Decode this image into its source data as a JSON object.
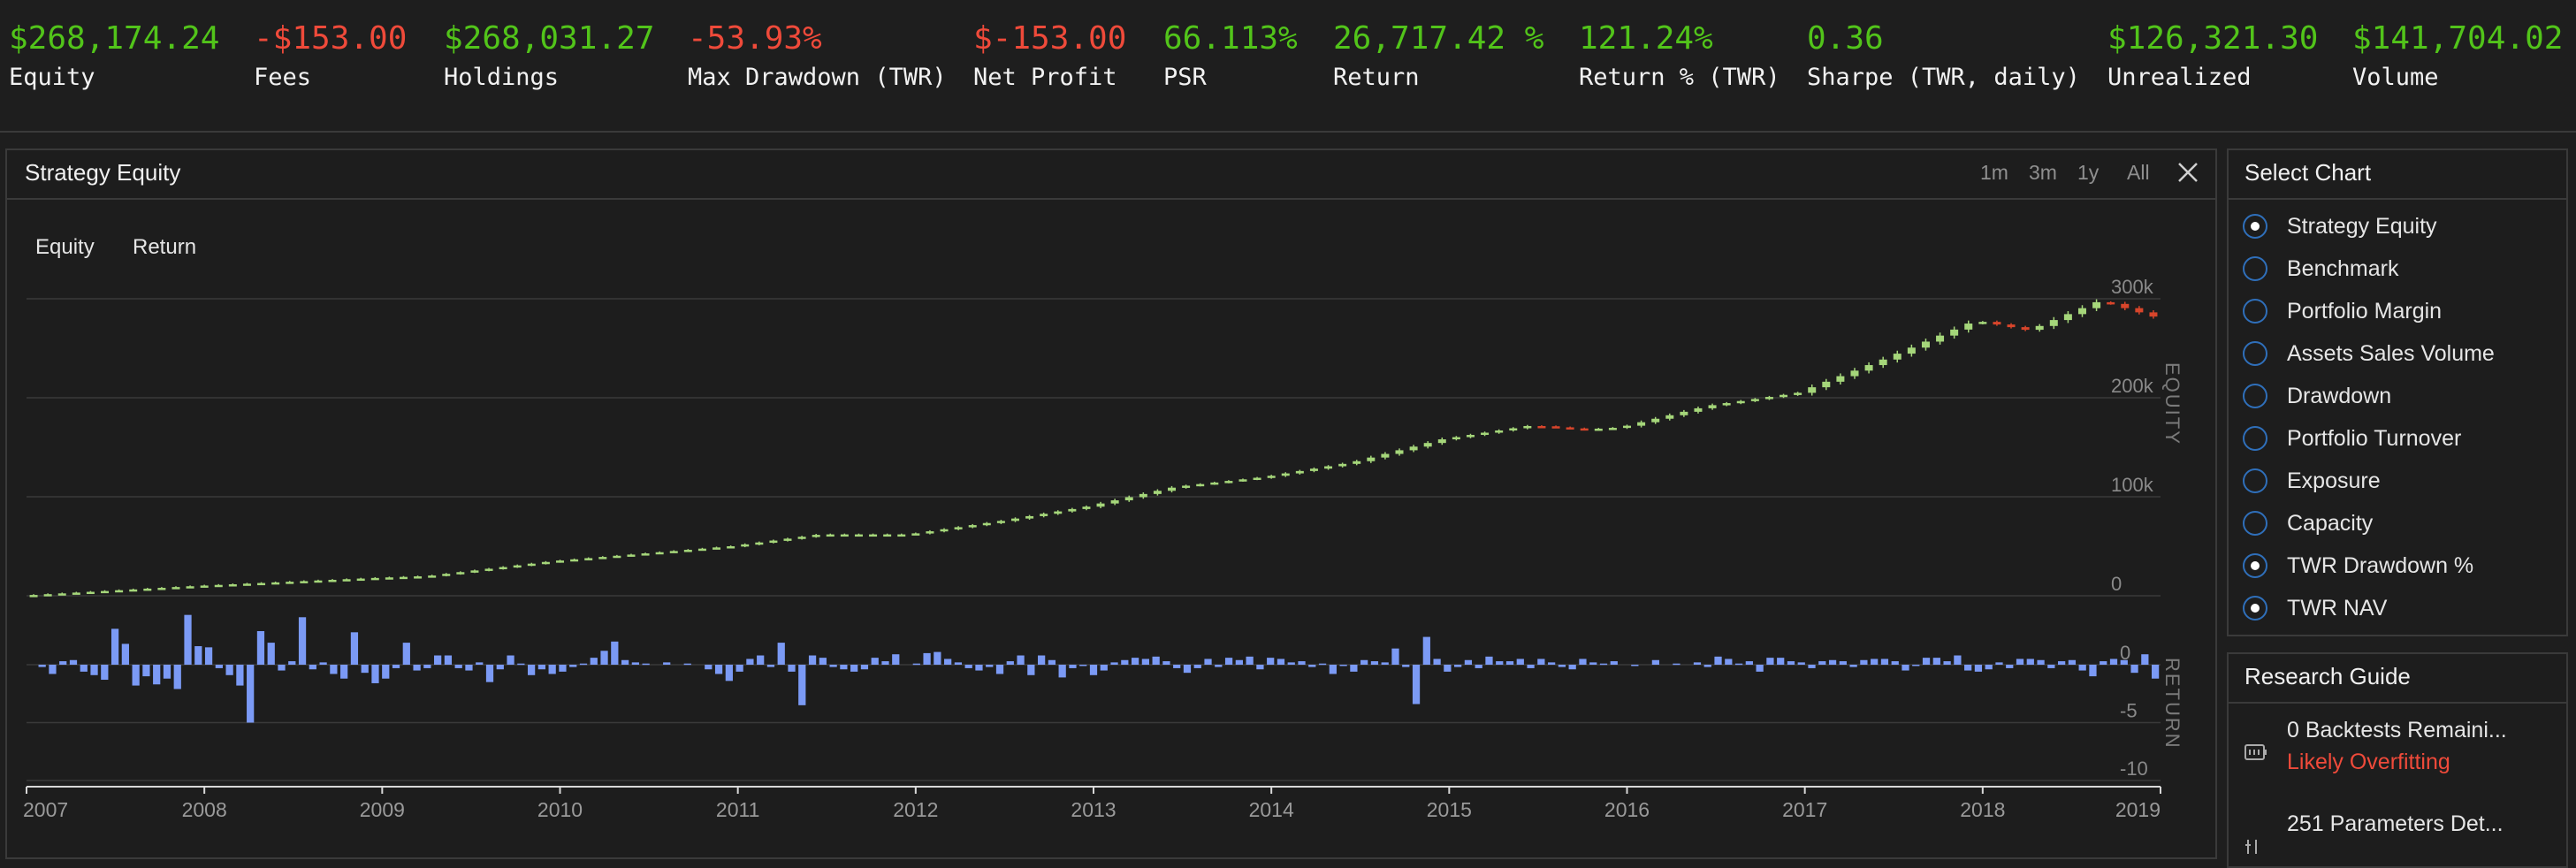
{
  "stats": [
    {
      "value": "$268,174.24",
      "label": "Equity",
      "tone": "pos"
    },
    {
      "value": "-$153.00",
      "label": "Fees",
      "tone": "neg"
    },
    {
      "value": "$268,031.27",
      "label": "Holdings",
      "tone": "pos"
    },
    {
      "value": "-53.93%",
      "label": "Max Drawdown (TWR)",
      "tone": "neg"
    },
    {
      "value": "$-153.00",
      "label": "Net Profit",
      "tone": "neg"
    },
    {
      "value": "66.113%",
      "label": "PSR",
      "tone": "pos"
    },
    {
      "value": "26,717.42 %",
      "label": "Return",
      "tone": "pos"
    },
    {
      "value": "121.24%",
      "label": "Return % (TWR)",
      "tone": "pos"
    },
    {
      "value": "0.36",
      "label": "Sharpe (TWR, daily)",
      "tone": "pos"
    },
    {
      "value": "$126,321.30",
      "label": "Unrealized",
      "tone": "pos"
    },
    {
      "value": "$141,704.02",
      "label": "Volume",
      "tone": "pos"
    }
  ],
  "chart_panel": {
    "title": "Strategy Equity",
    "ranges": [
      "1m",
      "3m",
      "1y",
      "All"
    ],
    "close_icon": "close-icon",
    "series_tabs": [
      "Equity",
      "Return"
    ]
  },
  "select_chart": {
    "title": "Select Chart",
    "options": [
      {
        "label": "Strategy Equity",
        "checked": true
      },
      {
        "label": "Benchmark",
        "checked": false
      },
      {
        "label": "Portfolio Margin",
        "checked": false
      },
      {
        "label": "Assets Sales Volume",
        "checked": false
      },
      {
        "label": "Drawdown",
        "checked": false
      },
      {
        "label": "Portfolio Turnover",
        "checked": false
      },
      {
        "label": "Exposure",
        "checked": false
      },
      {
        "label": "Capacity",
        "checked": false
      },
      {
        "label": "TWR Drawdown %",
        "checked": true
      },
      {
        "label": "TWR NAV",
        "checked": true
      }
    ]
  },
  "research_guide": {
    "title": "Research Guide",
    "items": [
      {
        "icon": "battery-icon",
        "text": "0 Backtests Remaini...",
        "warning": "Likely Overfitting"
      },
      {
        "icon": "parameters-icon",
        "text": "251 Parameters Det...",
        "warning": ""
      }
    ]
  },
  "chart_data": [
    {
      "type": "candlestick",
      "name": "Equity",
      "yaxis_label": "EQUITY",
      "y_ticks": [
        "300k",
        "200k",
        "100k",
        "0"
      ],
      "y_tick_values": [
        300000,
        200000,
        100000,
        0
      ],
      "ylim": [
        0,
        300000
      ],
      "x_ticks": [
        "2007",
        "2008",
        "2009",
        "2010",
        "2011",
        "2012",
        "2013",
        "2014",
        "2015",
        "2016",
        "2017",
        "2018",
        "2019"
      ],
      "xlim": [
        2007.0,
        2019.0
      ],
      "up_color": "#a5d67a",
      "down_color": "#d8452b",
      "waypoints": [
        [
          2007.0,
          0
        ],
        [
          2008.0,
          10000
        ],
        [
          2009.0,
          18000
        ],
        [
          2009.3,
          20000
        ],
        [
          2010.0,
          35000
        ],
        [
          2011.0,
          50000
        ],
        [
          2011.5,
          62000
        ],
        [
          2012.0,
          62000
        ],
        [
          2012.5,
          75000
        ],
        [
          2013.0,
          90000
        ],
        [
          2013.5,
          110000
        ],
        [
          2014.0,
          120000
        ],
        [
          2014.5,
          135000
        ],
        [
          2015.0,
          158000
        ],
        [
          2015.5,
          172000
        ],
        [
          2015.8,
          168000
        ],
        [
          2016.0,
          170000
        ],
        [
          2016.5,
          192000
        ],
        [
          2017.0,
          205000
        ],
        [
          2017.5,
          240000
        ],
        [
          2018.0,
          278000
        ],
        [
          2018.3,
          268000
        ],
        [
          2018.7,
          298000
        ],
        [
          2019.0,
          282000
        ]
      ]
    },
    {
      "type": "bar",
      "name": "Return",
      "yaxis_label": "RETURN",
      "y_ticks": [
        "0",
        "-5",
        "-10"
      ],
      "y_tick_values": [
        0,
        -5,
        -10
      ],
      "ylim": [
        -10,
        4
      ],
      "bar_color": "#7b9af5",
      "values": [
        0.0,
        -0.2,
        -0.8,
        0.3,
        0.4,
        -0.6,
        -0.9,
        -1.3,
        3.1,
        1.8,
        -1.8,
        -1.0,
        -1.7,
        -1.2,
        -2.1,
        4.3,
        1.6,
        1.5,
        -0.3,
        -0.9,
        -1.8,
        -5.0,
        2.9,
        1.9,
        -0.5,
        0.3,
        4.1,
        -0.4,
        0.2,
        -0.8,
        -1.2,
        2.8,
        -0.7,
        -1.6,
        -1.2,
        -0.3,
        1.9,
        -0.5,
        -0.3,
        0.8,
        0.8,
        -0.3,
        -0.5,
        0.2,
        -1.5,
        -0.4,
        0.8,
        0.1,
        -0.9,
        -0.4,
        -0.8,
        -0.6,
        -0.2,
        0.1,
        0.6,
        1.2,
        2.0,
        0.4,
        0.2,
        0.1,
        0.0,
        0.2,
        0.0,
        0.1,
        0.0,
        -0.4,
        -0.8,
        -1.4,
        -0.6,
        0.5,
        0.8,
        -0.2,
        1.9,
        -0.6,
        -3.5,
        0.8,
        0.6,
        -0.2,
        -0.4,
        -0.6,
        -0.4,
        0.6,
        0.3,
        0.9,
        0.0,
        0.1,
        1.0,
        1.1,
        0.5,
        0.2,
        -0.3,
        -0.5,
        -0.2,
        -0.8,
        0.3,
        0.8,
        -0.9,
        0.8,
        0.4,
        -1.1,
        -0.3,
        -0.1,
        -0.9,
        -0.5,
        0.2,
        0.4,
        0.6,
        0.5,
        0.7,
        0.3,
        -0.3,
        -0.7,
        -0.3,
        0.5,
        -0.2,
        0.6,
        0.4,
        0.7,
        -0.4,
        0.6,
        0.5,
        0.2,
        0.3,
        -0.2,
        0.1,
        -0.8,
        -0.1,
        -0.6,
        0.4,
        0.3,
        0.2,
        1.4,
        -0.2,
        -3.4,
        2.4,
        0.5,
        -0.6,
        -0.2,
        0.4,
        -0.3,
        0.7,
        0.3,
        0.3,
        0.5,
        -0.3,
        0.5,
        0.2,
        -0.2,
        -0.4,
        0.5,
        0.2,
        0.1,
        0.3,
        0.0,
        -0.1,
        0.0,
        0.4,
        0.0,
        0.1,
        0.0,
        0.2,
        -0.2,
        0.7,
        0.5,
        0.1,
        0.3,
        -0.6,
        0.6,
        0.6,
        0.3,
        0.2,
        -0.3,
        0.3,
        0.4,
        0.3,
        -0.2,
        0.4,
        0.5,
        0.5,
        0.3,
        -0.5,
        -0.1,
        0.6,
        0.6,
        0.3,
        0.8,
        -0.5,
        -0.6,
        -0.4,
        0.2,
        -0.3,
        0.5,
        0.5,
        0.4,
        -0.3,
        0.3,
        0.4,
        -0.5,
        -1.0,
        0.3,
        0.5,
        0.4,
        -0.7,
        0.9,
        -1.2
      ]
    }
  ]
}
